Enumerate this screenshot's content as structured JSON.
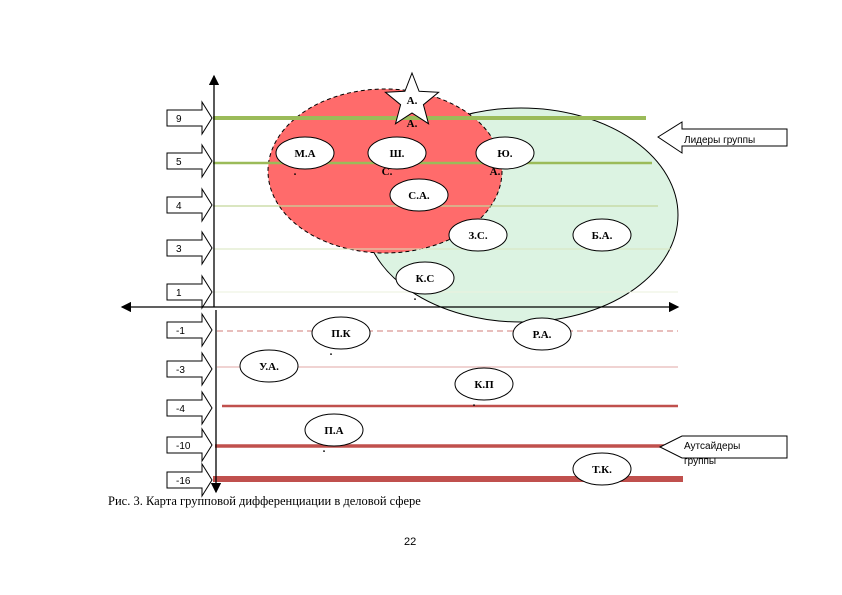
{
  "scale_levels": [
    "9",
    "5",
    "4",
    "3",
    "1",
    "-1",
    "-3",
    "-4",
    "-10",
    "-16"
  ],
  "callouts": {
    "leaders": "Лидеры группы",
    "outsiders_line1": "Аутсайдеры",
    "outsiders_line2": "группы"
  },
  "members": [
    {
      "line1": "А.",
      "line2": "А."
    },
    {
      "line1": "М.А",
      "line2": "."
    },
    {
      "line1": "Ш.",
      "line2": "С."
    },
    {
      "line1": "Ю.",
      "line2": "А."
    },
    {
      "line1": "С.А.",
      "line2": ""
    },
    {
      "line1": "З.С.",
      "line2": ""
    },
    {
      "line1": "Б.А.",
      "line2": ""
    },
    {
      "line1": "К.С",
      "line2": "."
    },
    {
      "line1": "П.К",
      "line2": "."
    },
    {
      "line1": "Р.А.",
      "line2": ""
    },
    {
      "line1": "У.А.",
      "line2": ""
    },
    {
      "line1": "К.П",
      "line2": "."
    },
    {
      "line1": "П.А",
      "line2": "."
    },
    {
      "line1": "Т.К.",
      "line2": ""
    }
  ],
  "colors": {
    "red_zone": "#ff6b6b",
    "green_zone": "#dcf3e2",
    "positive_lines": "#9bbb59",
    "negative_lines": "#c0504d"
  },
  "caption": "Рис. 3. Карта групповой дифференциации в деловой сфере",
  "page_number": "22"
}
